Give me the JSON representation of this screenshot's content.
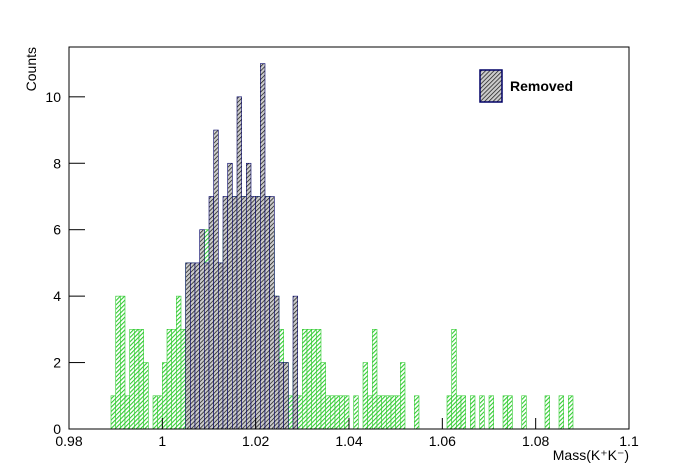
{
  "chart_data": {
    "type": "histogram",
    "x_label": "Mass(K⁺K⁻)",
    "y_label": "Counts",
    "xlim": [
      0.98,
      1.1
    ],
    "ylim": [
      0,
      11.5
    ],
    "xticks": [
      0.98,
      1,
      1.02,
      1.04,
      1.06,
      1.08,
      1.1
    ],
    "yticks": [
      0,
      2,
      4,
      6,
      8,
      10
    ],
    "bins": [
      0.988,
      0.989,
      0.99,
      0.991,
      0.992,
      0.993,
      0.994,
      0.995,
      0.996,
      0.997,
      0.998,
      0.999,
      1.0,
      1.001,
      1.002,
      1.003,
      1.004,
      1.005,
      1.006,
      1.007,
      1.008,
      1.009,
      1.01,
      1.011,
      1.012,
      1.013,
      1.014,
      1.015,
      1.016,
      1.017,
      1.018,
      1.019,
      1.02,
      1.021,
      1.022,
      1.023,
      1.024,
      1.025,
      1.026,
      1.027,
      1.028,
      1.029,
      1.03,
      1.031,
      1.032,
      1.033,
      1.034,
      1.035,
      1.036,
      1.037,
      1.038,
      1.039,
      1.04,
      1.041,
      1.042,
      1.043,
      1.044,
      1.045,
      1.046,
      1.047,
      1.048,
      1.049,
      1.05,
      1.051,
      1.052,
      1.053,
      1.054,
      1.055,
      1.056,
      1.057,
      1.058,
      1.059,
      1.06,
      1.061,
      1.062,
      1.063,
      1.064,
      1.065,
      1.066,
      1.067,
      1.068,
      1.069,
      1.07,
      1.071,
      1.072,
      1.073,
      1.074,
      1.075,
      1.076,
      1.077,
      1.078,
      1.079,
      1.08,
      1.081,
      1.082,
      1.083,
      1.084,
      1.085,
      1.086,
      1.087,
      1.088
    ],
    "series": [
      {
        "color": "#33cc33",
        "values": [
          0,
          1,
          4,
          4,
          1,
          3,
          3,
          3,
          2,
          0,
          1,
          1,
          2,
          3,
          3,
          4,
          3,
          5,
          5,
          4,
          5,
          6,
          4,
          3,
          5,
          6,
          7,
          7,
          6,
          7,
          7,
          6,
          7,
          7,
          7,
          6,
          4,
          3,
          2,
          1,
          2,
          1,
          3,
          3,
          3,
          3,
          2,
          1,
          1,
          1,
          1,
          1,
          0,
          1,
          0,
          2,
          1,
          3,
          1,
          1,
          1,
          1,
          1,
          2,
          0,
          0,
          1,
          0,
          0,
          0,
          0,
          0,
          0,
          1,
          3,
          1,
          1,
          0,
          1,
          0,
          1,
          0,
          1,
          0,
          0,
          1,
          1,
          0,
          0,
          1,
          0,
          0,
          0,
          0,
          1,
          0,
          0,
          1,
          0,
          1
        ]
      },
      {
        "name": "Removed",
        "color": "#000066",
        "values": [
          0,
          0,
          0,
          0,
          0,
          0,
          0,
          0,
          0,
          0,
          0,
          0,
          0,
          0,
          0,
          0,
          0,
          5,
          5,
          5,
          6,
          5,
          7,
          9,
          5,
          7,
          8,
          7,
          10,
          7,
          8,
          7,
          7,
          11,
          7,
          7,
          4,
          2,
          2,
          0,
          4,
          0,
          0,
          0,
          0,
          0,
          0,
          0,
          0,
          0,
          0,
          0,
          0,
          0,
          0,
          0,
          0,
          0,
          0,
          0,
          0,
          0,
          0,
          0,
          0,
          0,
          0,
          0,
          0,
          0,
          0,
          0,
          0,
          0,
          0,
          0,
          0,
          0,
          0,
          0,
          0,
          0,
          0,
          0,
          0,
          0,
          0,
          0,
          0,
          0,
          0,
          0,
          0,
          0,
          0,
          0,
          0,
          0,
          0,
          0
        ]
      }
    ],
    "legend": "top-right"
  }
}
